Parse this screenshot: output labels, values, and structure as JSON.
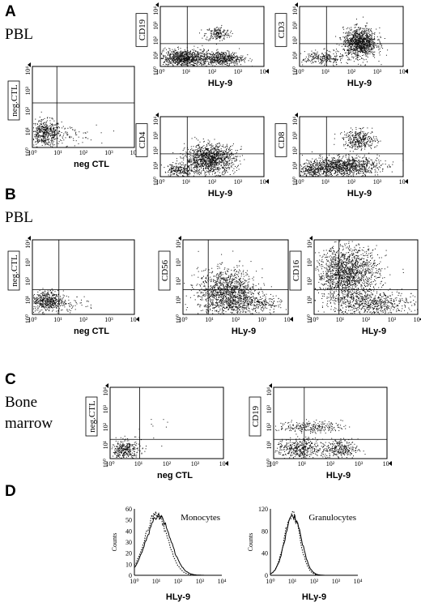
{
  "labels": {
    "A": "A",
    "A_sub": "PBL",
    "B": "B",
    "B_sub": "PBL",
    "C": "C",
    "C_sub1": "Bone",
    "C_sub2": "marrow",
    "D": "D"
  },
  "plots": [
    {
      "id": "A-neg",
      "ylabel": "neg.CTL",
      "xlabel": "neg  CTL",
      "boxed": true
    },
    {
      "id": "A-cd19",
      "ylabel": "CD19",
      "xlabel": "HLy-9",
      "boxed": true
    },
    {
      "id": "A-cd3",
      "ylabel": "CD3",
      "xlabel": "HLy-9",
      "boxed": true
    },
    {
      "id": "A-cd4",
      "ylabel": "CD4",
      "xlabel": "HLy-9",
      "boxed": true
    },
    {
      "id": "A-cd8",
      "ylabel": "CD8",
      "xlabel": "HLy-9",
      "boxed": true
    },
    {
      "id": "B-neg",
      "ylabel": "neg.CTL",
      "xlabel": "neg  CTL",
      "boxed": true
    },
    {
      "id": "B-cd56",
      "ylabel": "CD56",
      "xlabel": "HLy-9",
      "boxed": true
    },
    {
      "id": "B-cd16",
      "ylabel": "CD16",
      "xlabel": "HLy-9",
      "boxed": true
    },
    {
      "id": "C-neg",
      "ylabel": "neg.CTL",
      "xlabel": "neg  CTL",
      "boxed": true
    },
    {
      "id": "C-cd19",
      "ylabel": "CD19",
      "xlabel": "HLy-9",
      "boxed": true
    }
  ],
  "hists": [
    {
      "id": "D-mono",
      "title": "Monocytes",
      "ylabel": "Counts",
      "xlabel": "HLy-9",
      "yticks": [
        "0",
        "10",
        "20",
        "30",
        "40",
        "50",
        "60"
      ]
    },
    {
      "id": "D-gran",
      "title": "Granulocytes",
      "ylabel": "Counts",
      "xlabel": "HLy-9",
      "yticks": [
        "0",
        "40",
        "80",
        "120"
      ]
    }
  ],
  "log_ticks": {
    "x": [
      "10⁰",
      "10¹",
      "10²",
      "10³",
      "10⁴"
    ],
    "y": [
      "10⁰",
      "10¹",
      "10²",
      "10³",
      "10⁴"
    ]
  }
}
